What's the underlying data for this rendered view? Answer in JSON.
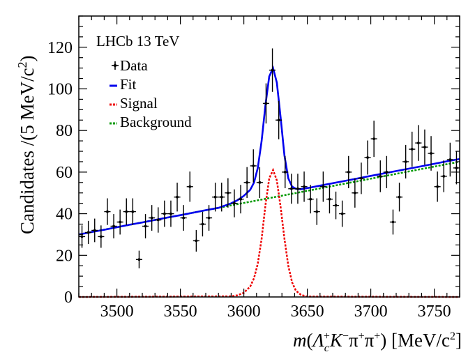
{
  "chart_data": {
    "type": "scatter",
    "title": "",
    "xlabel": "m(Λc⁺K⁻π⁺π⁺) [MeV/c²]",
    "xlabel_parts": {
      "m": "m",
      "open": "(",
      "lambda": "Λ",
      "lambda_sub": "c",
      "lambda_sup": "+",
      "kaon": "K",
      "kaon_sup": "−",
      "pi1": "π",
      "pi1_sup": "+",
      "pi2": "π",
      "pi2_sup": "+",
      "close": ")",
      "units": " [MeV/c",
      "units_sup": "2",
      "units_close": "]"
    },
    "ylabel": "Candidates /(5 MeV/c²)",
    "ylabel_parts": {
      "main": "Candidates /(5 MeV/c",
      "sup": "2",
      "close": ")"
    },
    "annotation": "LHCb 13 TeV",
    "xlim": [
      3470,
      3770
    ],
    "ylim": [
      0,
      135
    ],
    "x_ticks": [
      3500,
      3550,
      3600,
      3650,
      3700,
      3750
    ],
    "y_ticks": [
      0,
      20,
      40,
      60,
      80,
      100,
      120
    ],
    "legend_position": "top-left",
    "legend": [
      {
        "label": "Data",
        "style": "points",
        "color": "#000000"
      },
      {
        "label": "Fit",
        "style": "solid",
        "color": "#0000ee"
      },
      {
        "label": "Signal",
        "style": "dotted",
        "color": "#ee0000"
      },
      {
        "label": "Background",
        "style": "dotted",
        "color": "#009900"
      }
    ],
    "bin_width": 5,
    "data": {
      "x": [
        3472.5,
        3477.5,
        3482.5,
        3487.5,
        3492.5,
        3497.5,
        3502.5,
        3507.5,
        3512.5,
        3517.5,
        3522.5,
        3527.5,
        3532.5,
        3537.5,
        3542.5,
        3547.5,
        3552.5,
        3557.5,
        3562.5,
        3567.5,
        3572.5,
        3577.5,
        3582.5,
        3587.5,
        3592.5,
        3597.5,
        3602.5,
        3607.5,
        3612.5,
        3617.5,
        3622.5,
        3627.5,
        3632.5,
        3637.5,
        3642.5,
        3647.5,
        3652.5,
        3657.5,
        3662.5,
        3667.5,
        3672.5,
        3677.5,
        3682.5,
        3687.5,
        3692.5,
        3697.5,
        3702.5,
        3707.5,
        3712.5,
        3717.5,
        3722.5,
        3727.5,
        3732.5,
        3737.5,
        3742.5,
        3747.5,
        3752.5,
        3757.5,
        3762.5,
        3767.5
      ],
      "y": [
        29,
        31,
        32,
        29,
        41,
        34,
        36,
        41,
        41,
        18,
        34,
        38,
        37,
        40,
        40,
        48,
        38,
        53,
        27,
        35,
        38,
        48,
        48,
        50,
        45,
        47,
        55,
        63,
        55,
        93,
        109,
        85,
        60,
        52,
        52,
        53,
        47,
        41,
        53,
        47,
        44,
        40,
        60,
        50,
        57,
        67,
        76,
        58,
        60,
        36,
        48,
        65,
        71,
        74,
        72,
        69,
        53,
        58,
        66,
        62
      ]
    },
    "series": [
      {
        "name": "Fit",
        "type": "line",
        "x": [
          3470,
          3480,
          3490,
          3500,
          3510,
          3520,
          3530,
          3540,
          3550,
          3560,
          3570,
          3580,
          3590,
          3595,
          3600,
          3605,
          3608,
          3611,
          3614,
          3617,
          3620,
          3623,
          3626,
          3629,
          3632,
          3635,
          3638,
          3641,
          3645,
          3650,
          3660,
          3680,
          3700,
          3720,
          3740,
          3760,
          3770
        ],
        "y": [
          30.0,
          31.2,
          32.3,
          33.5,
          34.7,
          35.8,
          37.0,
          38.2,
          39.3,
          40.5,
          41.7,
          42.8,
          45.0,
          46.5,
          48.6,
          51.5,
          55.0,
          62.0,
          75.0,
          92.0,
          106.0,
          110.0,
          103.0,
          86.0,
          68.0,
          57.0,
          53.0,
          52.0,
          51.8,
          52.3,
          53.5,
          55.8,
          58.2,
          60.5,
          62.8,
          65.2,
          66.3
        ]
      },
      {
        "name": "Signal",
        "type": "line",
        "x": [
          3470,
          3590,
          3595,
          3600,
          3605,
          3608,
          3611,
          3614,
          3617,
          3620,
          3623,
          3626,
          3629,
          3632,
          3635,
          3638,
          3641,
          3645,
          3650,
          3770
        ],
        "y": [
          0,
          0.3,
          0.8,
          2.0,
          5.0,
          9.0,
          16.0,
          28.0,
          44.0,
          57.0,
          61.0,
          56.0,
          43.0,
          28.0,
          15.0,
          7.0,
          3.0,
          1.0,
          0.2,
          0
        ]
      },
      {
        "name": "Background",
        "type": "line",
        "x": [
          3470,
          3770
        ],
        "y": [
          30.0,
          65.0
        ]
      }
    ]
  }
}
